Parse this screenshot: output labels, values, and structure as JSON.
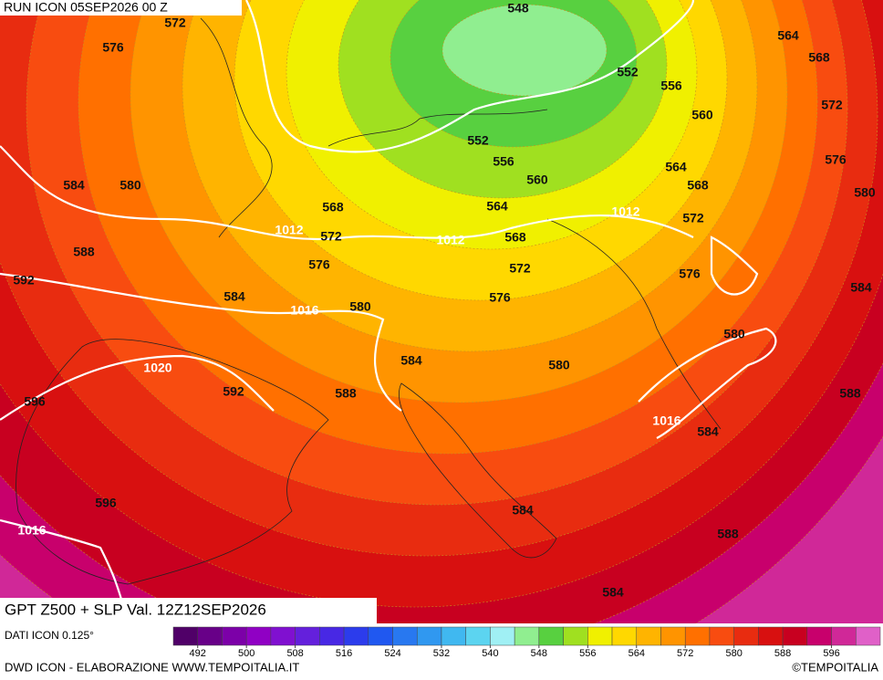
{
  "header": {
    "run": "RUN ICON 05SEP2026 00 Z"
  },
  "map": {
    "title": "GPT Z500 + SLP Val. 12Z12SEP2026",
    "z500_labels": [
      548,
      572,
      576,
      564,
      568,
      552,
      556,
      572,
      560,
      552,
      556,
      560,
      564,
      576,
      584,
      580,
      568,
      580,
      568,
      564,
      572,
      572,
      568,
      588,
      576,
      572,
      576,
      592,
      584,
      576,
      580,
      584,
      580,
      584,
      580,
      596,
      592,
      588,
      588,
      584,
      596,
      584,
      588,
      584
    ],
    "slp_labels": [
      1012,
      1012,
      1012,
      1016,
      1020,
      1016,
      1016
    ]
  },
  "legend": {
    "source": "DATI ICON 0.125°",
    "colors": [
      "#500068",
      "#680088",
      "#7c00a8",
      "#9000c4",
      "#8010d0",
      "#6420dc",
      "#4828e4",
      "#2c3cec",
      "#2058f0",
      "#2878f0",
      "#3098f0",
      "#40b8f0",
      "#5cd4f0",
      "#a0f0f4",
      "#90ee90",
      "#58d040",
      "#a0e020",
      "#f0f000",
      "#ffd800",
      "#ffb400",
      "#ff9400",
      "#ff7000",
      "#f84c10",
      "#e82c10",
      "#d81010",
      "#c80020",
      "#c8006c",
      "#d02898",
      "#e060c8"
    ],
    "ticks": [
      492,
      500,
      508,
      516,
      524,
      532,
      540,
      548,
      556,
      564,
      572,
      580,
      588,
      596
    ]
  },
  "footer": {
    "credit": "DWD ICON - ELABORAZIONE WWW.TEMPOITALIA.IT",
    "copyright": "©TEMPOITALIA"
  }
}
